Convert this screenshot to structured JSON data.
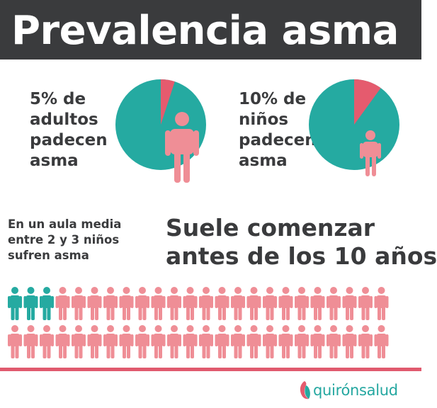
{
  "header": {
    "title": "Prevalencia asma"
  },
  "adults": {
    "percent": 5,
    "lines": [
      "5% de",
      "adultos",
      "padecen",
      "asma"
    ]
  },
  "children": {
    "percent": 10,
    "lines": [
      "10% de",
      "niños",
      "padecen",
      "asma"
    ]
  },
  "classroom": {
    "lines": [
      "En un aula media",
      "entre 2 y 3 niños",
      "sufren asma"
    ],
    "total": 48,
    "affected": 3
  },
  "onset": {
    "lines": [
      "Suele comenzar",
      "antes de los 10 años"
    ]
  },
  "brand": {
    "name": "quirónsalud"
  },
  "colors": {
    "header_bg": "#3a3b3d",
    "teal": "#25aaa1",
    "pink": "#ef8e96",
    "slice": "#e55b6e",
    "divider": "#e05a6e",
    "text": "#3a3b3d"
  },
  "icons": {
    "adult": "person-icon",
    "child": "child-icon",
    "logo": "quironsalud-logo-icon"
  }
}
